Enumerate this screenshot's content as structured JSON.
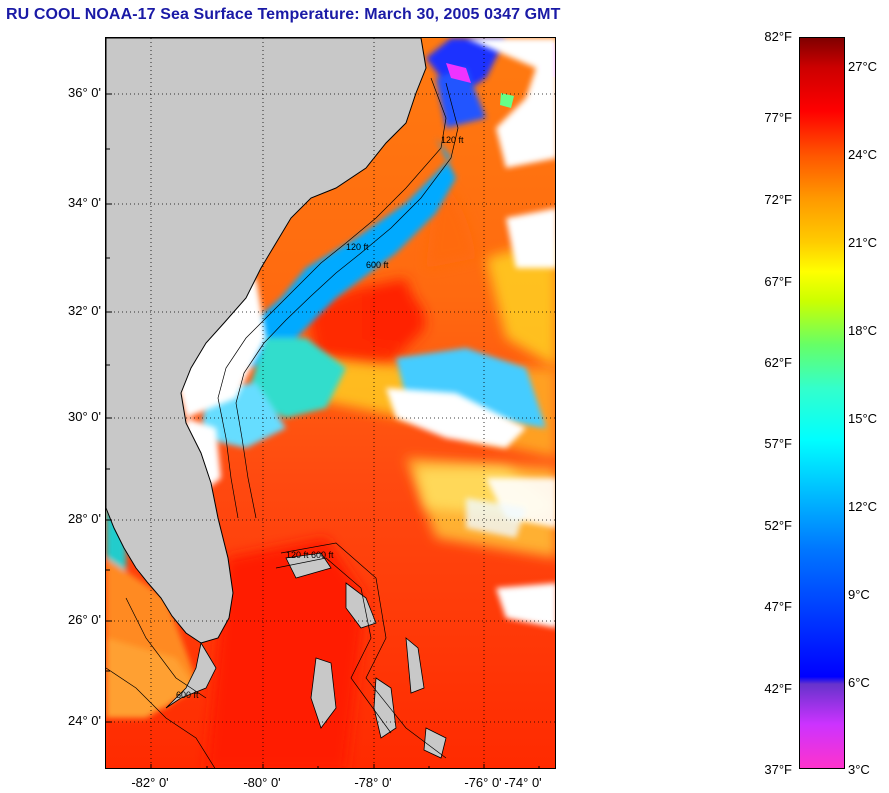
{
  "title": "RU COOL  NOAA-17  Sea Surface Temperature:  March 30, 2005 0347 GMT",
  "map": {
    "lat_labels": [
      "36° 0'",
      "34° 0'",
      "32° 0'",
      "30° 0'",
      "28° 0'",
      "26° 0'",
      "24° 0'"
    ],
    "lon_labels": [
      "-82° 0'",
      "-80° 0'",
      "-78° 0'",
      "-76° 0'",
      "-74° 0'"
    ],
    "contour_labels": [
      "120 ft",
      "600 ft"
    ],
    "colors": {
      "land": "#c8c8c8",
      "cloud": "#ffffff",
      "warm": "#ff2200",
      "cool": "#00ccff"
    }
  },
  "colorbar": {
    "fahrenheit": [
      "82°F",
      "77°F",
      "72°F",
      "67°F",
      "62°F",
      "57°F",
      "52°F",
      "47°F",
      "42°F",
      "37°F"
    ],
    "celsius": [
      "27°C",
      "24°C",
      "21°C",
      "18°C",
      "15°C",
      "12°C",
      "9°C",
      "6°C",
      "3°C"
    ]
  }
}
